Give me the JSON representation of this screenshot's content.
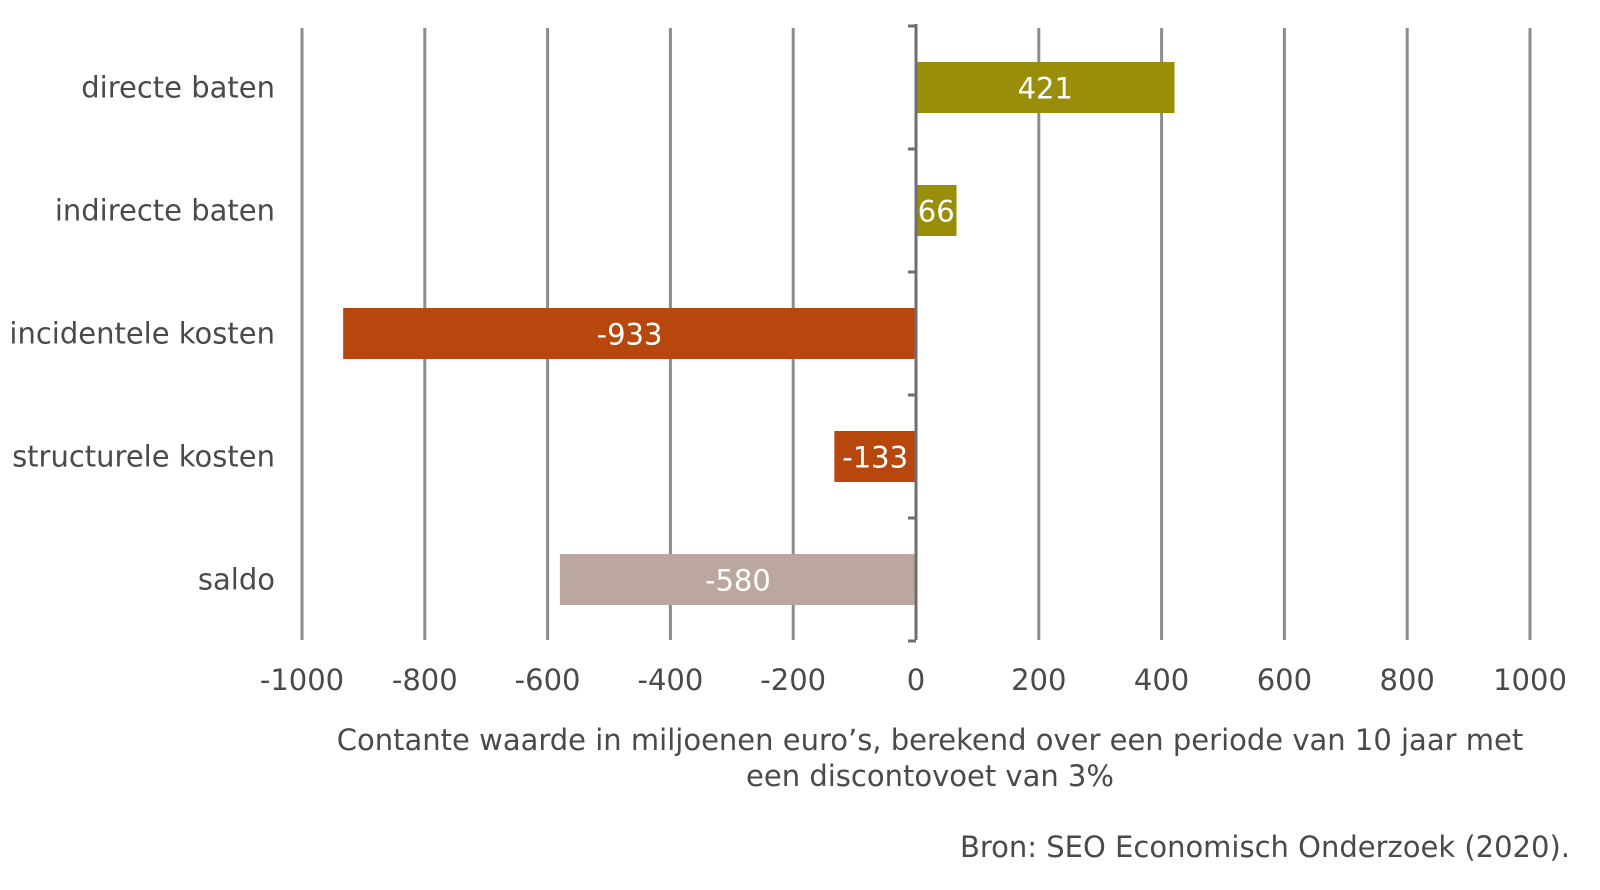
{
  "chart_data": {
    "type": "bar",
    "orientation": "horizontal",
    "categories": [
      "directe baten",
      "indirecte baten",
      "incidentele kosten",
      "structurele kosten",
      "saldo"
    ],
    "values": [
      421,
      66,
      -933,
      -133,
      -580
    ],
    "value_labels": [
      "421",
      "66",
      "-933",
      "-133",
      "-580"
    ],
    "bar_colors": [
      "#9a8d0a",
      "#9a8d0a",
      "#b8470e",
      "#b8470e",
      "#bba79f"
    ],
    "xlim": [
      -1000,
      1000
    ],
    "xticks": [
      -1000,
      -800,
      -600,
      -400,
      -200,
      0,
      200,
      400,
      600,
      800,
      1000
    ],
    "tick_labels": [
      "-1000",
      "-800",
      "-600",
      "-400",
      "-200",
      "0",
      "200",
      "400",
      "600",
      "800",
      "1000"
    ],
    "xlabel_line1": "Contante waarde in miljoenen euro’s, berekend over een periode van 10 jaar met",
    "xlabel_line2": "een discontovoet van 3%",
    "grid": "vertical",
    "legend": "none"
  },
  "source": "Bron: SEO Economisch Onderzoek (2020)."
}
